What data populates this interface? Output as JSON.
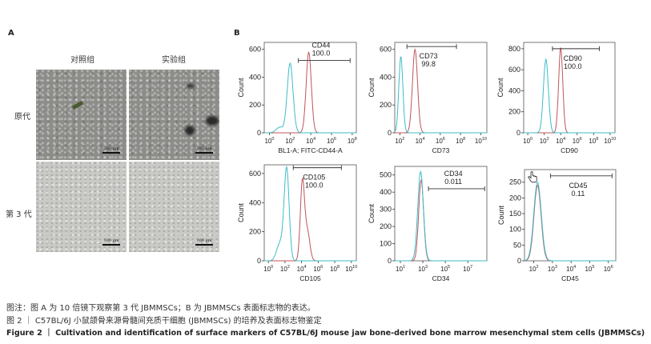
{
  "panel_a": {
    "letter": "A",
    "columns": [
      "对照组",
      "实验组"
    ],
    "rows": [
      "原代",
      "第 3 代"
    ],
    "scale_bar": "100 μm"
  },
  "panel_b": {
    "letter": "B"
  },
  "colors": {
    "isotype": "#3dbcc8",
    "marker": "#c0545a"
  },
  "chart_data": [
    {
      "type": "histogram",
      "marker": "CD44",
      "value": "100.0",
      "xlabel": "BL1-A; FITC-CD44-A",
      "ylabel": "Count",
      "xlim_log10": [
        -0.5,
        8.4
      ],
      "xticks_exp": [
        0,
        2,
        4,
        6,
        8
      ],
      "ylim": [
        0,
        650
      ],
      "yticks": [
        0,
        200,
        400,
        600
      ],
      "gate_log10": [
        2.8,
        7.8
      ],
      "gate_y": 520,
      "isotype_peaks": [
        {
          "center": 2.0,
          "height": 500,
          "width": 0.28
        },
        {
          "center": 1.0,
          "height": 40,
          "width": 0.35
        }
      ],
      "marker_peaks": [
        {
          "center": 3.8,
          "height": 580,
          "width": 0.25
        }
      ]
    },
    {
      "type": "histogram",
      "marker": "CD73",
      "value": "99.8",
      "xlabel": "CD73",
      "ylabel": "Count",
      "xlim_log10": [
        1.5,
        10.6
      ],
      "xticks_exp": [
        2,
        4,
        6,
        8,
        10
      ],
      "ylim": [
        0,
        650
      ],
      "yticks": [
        0,
        200,
        400,
        600
      ],
      "gate_log10": [
        2.7,
        7.6
      ],
      "gate_y": 620,
      "isotype_peaks": [
        {
          "center": 2.1,
          "height": 550,
          "width": 0.2
        }
      ],
      "marker_peaks": [
        {
          "center": 3.5,
          "height": 600,
          "width": 0.25
        }
      ]
    },
    {
      "type": "histogram",
      "marker": "CD90",
      "value": "100.0",
      "xlabel": "CD90",
      "ylabel": "Count",
      "xlim_log10": [
        -0.5,
        10.6
      ],
      "xticks_exp": [
        0,
        2,
        4,
        6,
        8,
        10
      ],
      "ylim": [
        0,
        860
      ],
      "yticks": [
        0,
        200,
        400,
        600,
        800
      ],
      "gate_log10": [
        3.0,
        8.7
      ],
      "gate_y": 800,
      "isotype_peaks": [
        {
          "center": 2.2,
          "height": 700,
          "width": 0.3
        }
      ],
      "marker_peaks": [
        {
          "center": 4.0,
          "height": 810,
          "width": 0.25
        }
      ]
    },
    {
      "type": "histogram",
      "marker": "CD105",
      "value": "100.0",
      "xlabel": "CD105",
      "ylabel": "Count",
      "xlim_log10": [
        -0.5,
        10.6
      ],
      "xticks_exp": [
        0,
        2,
        4,
        6,
        8,
        10
      ],
      "ylim": [
        0,
        660
      ],
      "yticks": [
        0,
        200,
        400,
        600
      ],
      "gate_log10": [
        3.0,
        8.8
      ],
      "gate_y": 640,
      "isotype_peaks": [
        {
          "center": 2.2,
          "height": 630,
          "width": 0.3
        },
        {
          "center": 1.4,
          "height": 120,
          "width": 0.4
        }
      ],
      "marker_peaks": [
        {
          "center": 4.1,
          "height": 540,
          "width": 0.25
        },
        {
          "center": 4.7,
          "height": 200,
          "width": 0.3
        }
      ]
    },
    {
      "type": "histogram",
      "marker": "CD34",
      "value": "0.011",
      "xlabel": "CD34",
      "ylabel": "Count",
      "xlim_log10": [
        0.5,
        8.7
      ],
      "xticks_exp": [
        1,
        3,
        5,
        7
      ],
      "ylim": [
        0,
        550
      ],
      "yticks": [
        0,
        100,
        200,
        300,
        400,
        500
      ],
      "gate_log10": [
        3.5,
        8.5
      ],
      "gate_y": 420,
      "isotype_peaks": [
        {
          "center": 2.8,
          "height": 520,
          "width": 0.25
        }
      ],
      "marker_peaks": [
        {
          "center": 2.85,
          "height": 470,
          "width": 0.22
        }
      ]
    },
    {
      "type": "histogram",
      "marker": "CD45",
      "value": "0.11",
      "xlabel": "CD45",
      "ylabel": "Count",
      "xlim_log10": [
        1.5,
        6.4
      ],
      "xticks_exp": [
        2,
        3,
        4,
        5,
        6
      ],
      "ylim": [
        0,
        290
      ],
      "yticks": [
        0,
        50,
        100,
        150,
        200,
        250
      ],
      "gate_log10": [
        2.9,
        6.2
      ],
      "gate_y": 270,
      "isotype_peaks": [
        {
          "center": 2.2,
          "height": 250,
          "width": 0.2
        }
      ],
      "marker_peaks": [
        {
          "center": 2.2,
          "height": 240,
          "width": 0.19
        }
      ]
    }
  ],
  "caption": {
    "note": "图注：图 A 为 10 倍镜下观察第 3 代 JBMMSCs；B 为 JBMMSCs 表面标志物的表达。",
    "title_cn": "图 2 ｜ C57BL/6J 小鼠颌骨来源骨髓间充质干细胞 (JBMMSCs) 的培养及表面标志物鉴定",
    "title_en": "Figure 2 ｜ Cultivation and identification of surface markers of C57BL/6J mouse jaw bone-derived bone marrow mesenchymal stem cells (JBMMSCs)"
  }
}
